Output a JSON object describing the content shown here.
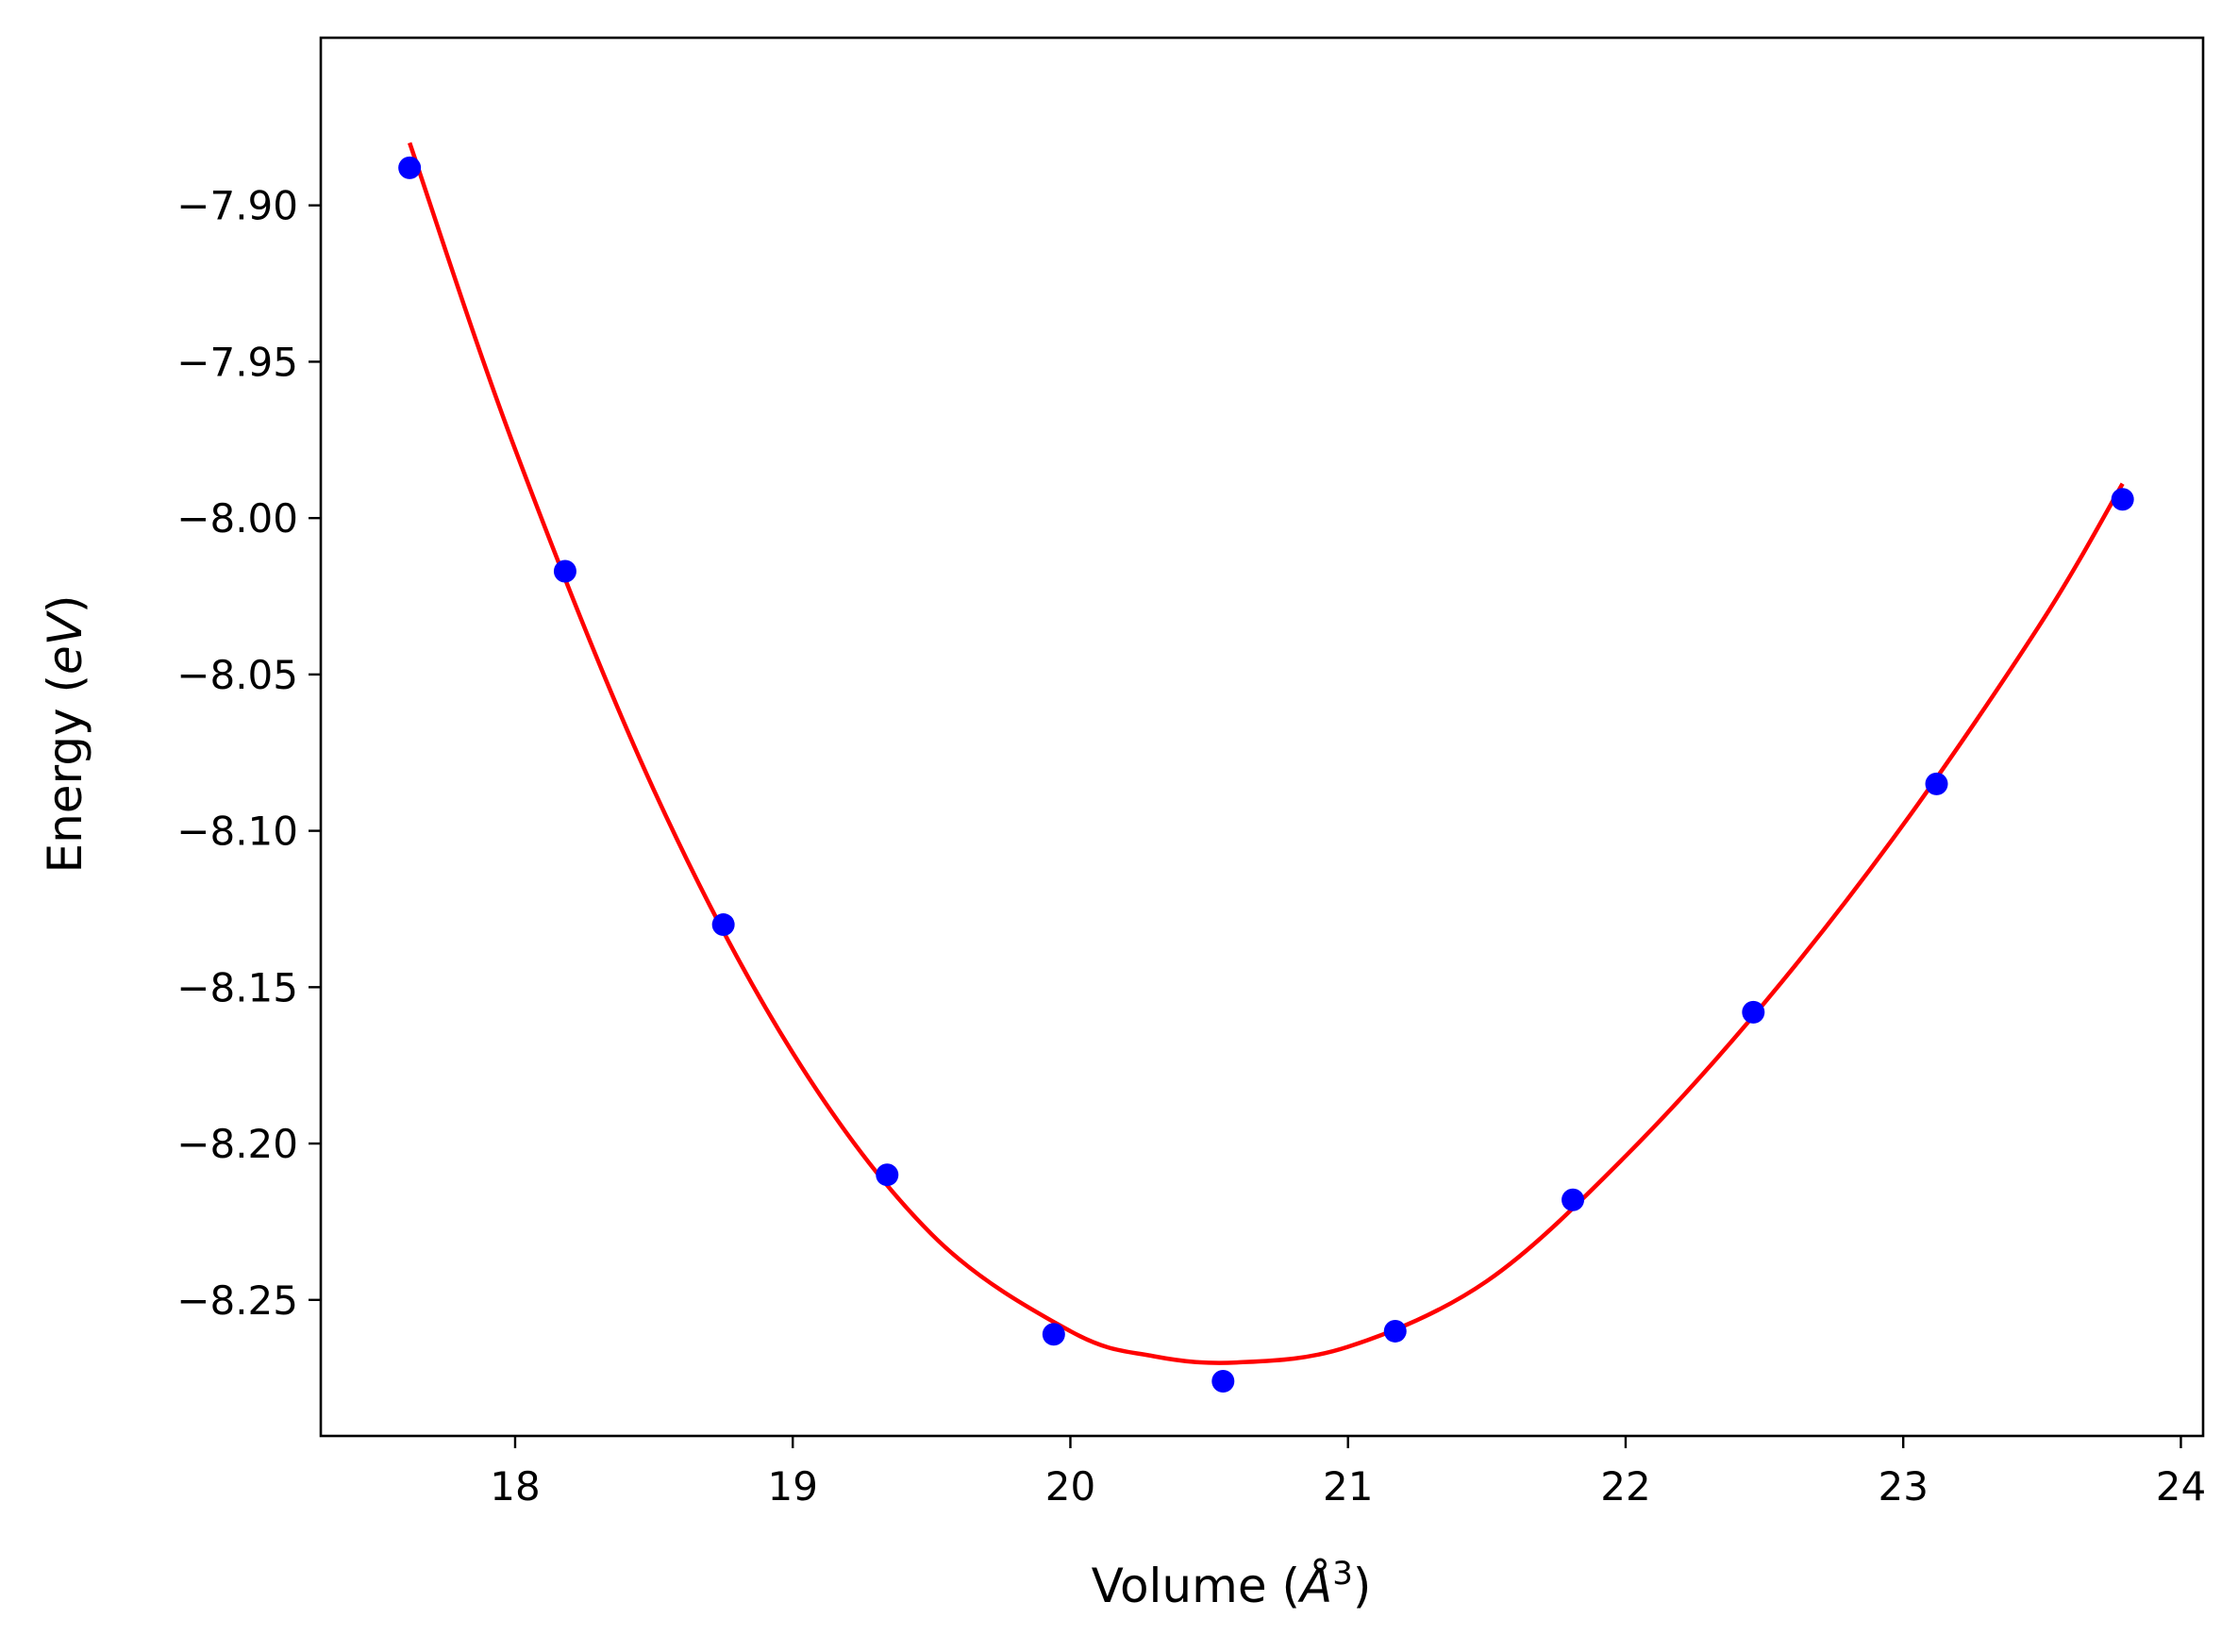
{
  "chart_data": {
    "type": "scatter",
    "title": "",
    "xlabel": "Volume (Å³)",
    "xlabel_parts": {
      "prefix": "Volume (",
      "unit": "Å",
      "power": "3",
      "suffix": ")"
    },
    "ylabel": "Energy (eV)",
    "ylabel_parts": {
      "prefix": "Energy (",
      "unit": "eV",
      "suffix": ")"
    },
    "xlim": [
      17.3,
      24.08
    ],
    "ylim": [
      -8.2935,
      -7.8464
    ],
    "x_ticks": [
      18,
      19,
      20,
      21,
      22,
      23,
      24
    ],
    "x_tick_labels": [
      "18",
      "19",
      "20",
      "21",
      "22",
      "23",
      "24"
    ],
    "y_ticks": [
      -7.9,
      -7.95,
      -8.0,
      -8.05,
      -8.1,
      -8.15,
      -8.2,
      -8.25
    ],
    "y_tick_labels": [
      "−7.90",
      "−7.95",
      "−8.00",
      "−8.05",
      "−8.10",
      "−8.15",
      "−8.20",
      "−8.25"
    ],
    "grid": false,
    "legend": "none",
    "series": [
      {
        "kind": "points",
        "color": "#0000ff",
        "points": [
          {
            "x": 17.62,
            "y": -7.888
          },
          {
            "x": 18.18,
            "y": -8.017
          },
          {
            "x": 18.75,
            "y": -8.13
          },
          {
            "x": 19.34,
            "y": -8.21
          },
          {
            "x": 19.94,
            "y": -8.261
          },
          {
            "x": 20.55,
            "y": -8.276
          },
          {
            "x": 21.17,
            "y": -8.26
          },
          {
            "x": 21.81,
            "y": -8.218
          },
          {
            "x": 22.46,
            "y": -8.158
          },
          {
            "x": 23.12,
            "y": -8.085
          },
          {
            "x": 23.79,
            "y": -7.994
          }
        ]
      },
      {
        "kind": "fit-curve",
        "color": "#ff0000",
        "points": [
          {
            "x": 17.62,
            "y": -7.88
          },
          {
            "x": 18.0,
            "y": -7.978
          },
          {
            "x": 18.5,
            "y": -8.087
          },
          {
            "x": 19.0,
            "y": -8.171
          },
          {
            "x": 19.5,
            "y": -8.229
          },
          {
            "x": 20.0,
            "y": -8.26
          },
          {
            "x": 20.3,
            "y": -8.268
          },
          {
            "x": 20.6,
            "y": -8.27
          },
          {
            "x": 21.0,
            "y": -8.265
          },
          {
            "x": 21.5,
            "y": -8.244
          },
          {
            "x": 22.0,
            "y": -8.204
          },
          {
            "x": 22.5,
            "y": -8.155
          },
          {
            "x": 23.0,
            "y": -8.098
          },
          {
            "x": 23.5,
            "y": -8.033
          },
          {
            "x": 23.79,
            "y": -7.989
          }
        ]
      }
    ]
  }
}
